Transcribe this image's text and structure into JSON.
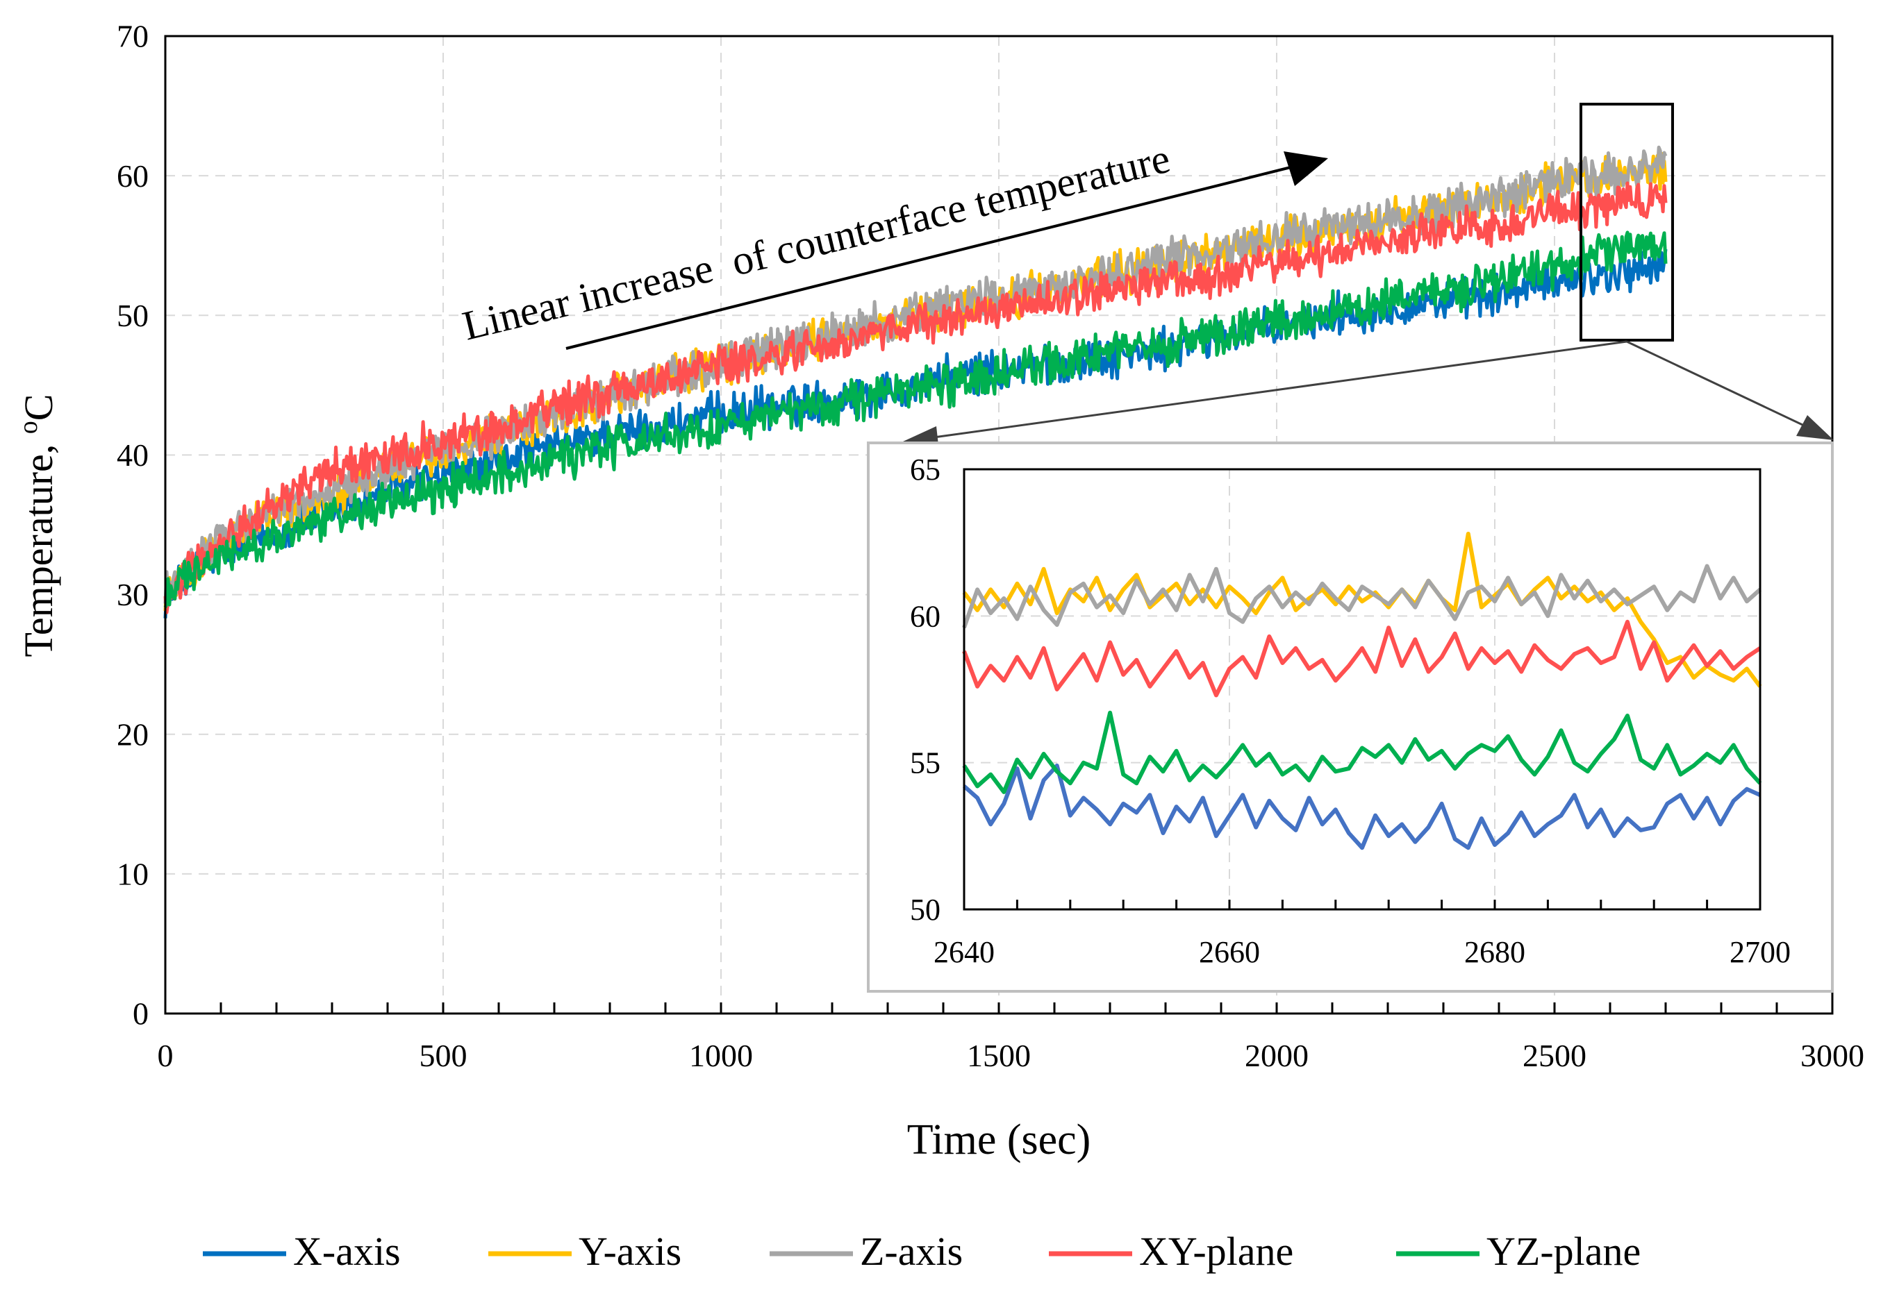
{
  "chart_data": [
    {
      "type": "line",
      "title": "",
      "xlabel": "Time (sec)",
      "ylabel": "Temperature, ",
      "ylabel_sup": "o",
      "ylabel_unit": "C",
      "xlim": [
        0,
        3000
      ],
      "ylim": [
        0,
        70
      ],
      "x_ticks": [
        "0",
        "500",
        "1000",
        "1500",
        "2000",
        "2500",
        "3000"
      ],
      "y_ticks": [
        "0",
        "10",
        "20",
        "30",
        "40",
        "50",
        "60",
        "70"
      ],
      "grid": true,
      "legend_position": "bottom",
      "annotation": "Linear increase  of counterface temperature",
      "series": [
        {
          "name": "X-axis",
          "color": "#0070C0",
          "x": [
            0,
            100,
            200,
            300,
            400,
            500,
            600,
            700,
            800,
            900,
            1000,
            1100,
            1200,
            1300,
            1400,
            1500,
            1600,
            1700,
            1800,
            1900,
            2000,
            2100,
            2200,
            2300,
            2400,
            2500,
            2600,
            2700
          ],
          "y": [
            30,
            33,
            34.5,
            36,
            37.5,
            38.5,
            39.5,
            40.5,
            41.5,
            42,
            43,
            43.5,
            44,
            44.5,
            45.5,
            46,
            46.5,
            47,
            47.5,
            48.5,
            49,
            50,
            50.5,
            51,
            51.5,
            52.5,
            53,
            53.5
          ]
        },
        {
          "name": "Y-axis",
          "color": "#FFC000",
          "x": [
            0,
            100,
            200,
            300,
            400,
            500,
            600,
            700,
            800,
            900,
            1000,
            1100,
            1200,
            1300,
            1400,
            1500,
            1600,
            1700,
            1800,
            1900,
            2000,
            2100,
            2200,
            2300,
            2400,
            2500,
            2600,
            2700
          ],
          "y": [
            30,
            34,
            36,
            37,
            39,
            40,
            41.5,
            42.5,
            44,
            45.5,
            46.5,
            47.5,
            48.5,
            49.5,
            50,
            51,
            52,
            53,
            53.5,
            54.5,
            55.5,
            56,
            57,
            57.5,
            58.5,
            59.5,
            60,
            60.5
          ]
        },
        {
          "name": "Z-axis",
          "color": "#A5A5A5",
          "x": [
            0,
            100,
            200,
            300,
            400,
            500,
            600,
            700,
            800,
            900,
            1000,
            1100,
            1200,
            1300,
            1400,
            1500,
            1600,
            1700,
            1800,
            1900,
            2000,
            2100,
            2200,
            2300,
            2400,
            2500,
            2600,
            2700
          ],
          "y": [
            30,
            34,
            36,
            37.5,
            39,
            40.5,
            41.5,
            43,
            44,
            45.5,
            46.5,
            47.5,
            48.5,
            49.5,
            50.5,
            51.5,
            52,
            53,
            54,
            54.5,
            55.5,
            56.5,
            57,
            57.5,
            58.5,
            59.5,
            60,
            61
          ]
        },
        {
          "name": "XY-plane",
          "color": "#FF5050",
          "x": [
            0,
            100,
            200,
            300,
            400,
            500,
            600,
            700,
            800,
            900,
            1000,
            1100,
            1200,
            1300,
            1400,
            1500,
            1600,
            1700,
            1800,
            1900,
            2000,
            2100,
            2200,
            2300,
            2400,
            2500,
            2600,
            2700
          ],
          "y": [
            30,
            34,
            36.5,
            39,
            40,
            41,
            42,
            43.5,
            44.5,
            45.5,
            46.5,
            47,
            48,
            49,
            49.5,
            50.5,
            51,
            52,
            52.5,
            53,
            54,
            54.5,
            55.5,
            56,
            56.5,
            57.5,
            58,
            58.5
          ]
        },
        {
          "name": "YZ-plane",
          "color": "#00B050",
          "x": [
            0,
            100,
            200,
            300,
            400,
            500,
            600,
            700,
            800,
            900,
            1000,
            1100,
            1200,
            1300,
            1400,
            1500,
            1600,
            1700,
            1800,
            1900,
            2000,
            2100,
            2200,
            2300,
            2400,
            2500,
            2600,
            2700
          ],
          "y": [
            30,
            32.5,
            34,
            35.5,
            36.5,
            37.5,
            38.5,
            39.5,
            40.5,
            41.5,
            42,
            43,
            43.5,
            44.5,
            45,
            46,
            46.5,
            47.5,
            48,
            48.5,
            49.5,
            50,
            51,
            51.5,
            52.5,
            53.5,
            54.5,
            55
          ]
        }
      ]
    },
    {
      "type": "line",
      "title": "",
      "xlabel": "",
      "ylabel": "",
      "xlim": [
        2640,
        2700
      ],
      "ylim": [
        50,
        65
      ],
      "x_ticks": [
        "2640",
        "2660",
        "2680",
        "2700"
      ],
      "y_ticks": [
        "50",
        "55",
        "60",
        "65"
      ],
      "grid": true,
      "series": [
        {
          "name": "X-axis",
          "color": "#4472C4",
          "x": [
            2640,
            2641,
            2642,
            2643,
            2644,
            2645,
            2646,
            2647,
            2648,
            2649,
            2650,
            2651,
            2652,
            2653,
            2654,
            2655,
            2656,
            2657,
            2658,
            2659,
            2660,
            2661,
            2662,
            2663,
            2664,
            2665,
            2666,
            2667,
            2668,
            2669,
            2670,
            2671,
            2672,
            2673,
            2674,
            2675,
            2676,
            2677,
            2678,
            2679,
            2680,
            2681,
            2682,
            2683,
            2684,
            2685,
            2686,
            2687,
            2688,
            2689,
            2690,
            2691,
            2692,
            2693,
            2694,
            2695,
            2696,
            2697,
            2698,
            2699,
            2700
          ],
          "y": [
            54.2,
            53.8,
            52.9,
            53.6,
            54.8,
            53.1,
            54.4,
            54.9,
            53.2,
            53.8,
            53.4,
            52.9,
            53.6,
            53.3,
            53.9,
            52.6,
            53.5,
            53.0,
            53.8,
            52.5,
            53.2,
            53.9,
            52.8,
            53.7,
            53.1,
            52.7,
            53.8,
            52.9,
            53.4,
            52.6,
            52.1,
            53.2,
            52.5,
            52.9,
            52.3,
            52.8,
            53.6,
            52.4,
            52.1,
            53.1,
            52.2,
            52.6,
            53.3,
            52.5,
            52.9,
            53.2,
            53.9,
            52.8,
            53.4,
            52.5,
            53.1,
            52.7,
            52.8,
            53.6,
            53.9,
            53.1,
            53.8,
            52.9,
            53.7,
            54.1,
            53.9
          ]
        },
        {
          "name": "Y-axis",
          "color": "#FFC000",
          "x": [
            2640,
            2641,
            2642,
            2643,
            2644,
            2645,
            2646,
            2647,
            2648,
            2649,
            2650,
            2651,
            2652,
            2653,
            2654,
            2655,
            2656,
            2657,
            2658,
            2659,
            2660,
            2661,
            2662,
            2663,
            2664,
            2665,
            2666,
            2667,
            2668,
            2669,
            2670,
            2671,
            2672,
            2673,
            2674,
            2675,
            2676,
            2677,
            2678,
            2679,
            2680,
            2681,
            2682,
            2683,
            2684,
            2685,
            2686,
            2687,
            2688,
            2689,
            2690,
            2691,
            2692,
            2693,
            2694,
            2695,
            2696,
            2697,
            2698,
            2699,
            2700
          ],
          "y": [
            60.8,
            60.2,
            60.9,
            60.3,
            61.1,
            60.4,
            61.6,
            60.1,
            60.9,
            60.5,
            61.3,
            60.2,
            60.9,
            61.4,
            60.3,
            60.7,
            61.1,
            60.4,
            60.9,
            60.3,
            61.0,
            60.6,
            60.1,
            60.8,
            61.3,
            60.2,
            60.6,
            60.9,
            60.4,
            61.0,
            60.5,
            60.8,
            60.3,
            60.9,
            60.4,
            61.2,
            60.6,
            60.2,
            62.8,
            60.3,
            60.7,
            61.1,
            60.4,
            60.9,
            61.3,
            60.6,
            61.0,
            60.5,
            60.8,
            60.2,
            60.6,
            59.8,
            59.2,
            58.4,
            58.6,
            57.9,
            58.3,
            58.0,
            57.8,
            58.2,
            57.6
          ]
        },
        {
          "name": "Z-axis",
          "color": "#A5A5A5",
          "x": [
            2640,
            2641,
            2642,
            2643,
            2644,
            2645,
            2646,
            2647,
            2648,
            2649,
            2650,
            2651,
            2652,
            2653,
            2654,
            2655,
            2656,
            2657,
            2658,
            2659,
            2660,
            2661,
            2662,
            2663,
            2664,
            2665,
            2666,
            2667,
            2668,
            2669,
            2670,
            2671,
            2672,
            2673,
            2674,
            2675,
            2676,
            2677,
            2678,
            2679,
            2680,
            2681,
            2682,
            2683,
            2684,
            2685,
            2686,
            2687,
            2688,
            2689,
            2690,
            2691,
            2692,
            2693,
            2694,
            2695,
            2696,
            2697,
            2698,
            2699,
            2700
          ],
          "y": [
            59.6,
            60.9,
            60.1,
            60.6,
            59.9,
            61.0,
            60.2,
            59.7,
            60.8,
            61.1,
            60.3,
            60.7,
            60.1,
            61.2,
            60.4,
            60.9,
            60.2,
            61.4,
            60.5,
            61.6,
            60.1,
            59.8,
            60.6,
            61.0,
            60.3,
            60.8,
            60.4,
            61.1,
            60.6,
            60.2,
            61.0,
            60.7,
            60.4,
            60.9,
            60.3,
            61.2,
            60.6,
            59.9,
            60.8,
            61.0,
            60.5,
            61.3,
            60.4,
            60.8,
            60.0,
            61.4,
            60.6,
            61.2,
            60.5,
            60.9,
            60.4,
            60.7,
            61.0,
            60.2,
            60.8,
            60.5,
            61.7,
            60.6,
            61.3,
            60.5,
            60.9
          ]
        },
        {
          "name": "XY-plane",
          "color": "#FF5050",
          "x": [
            2640,
            2641,
            2642,
            2643,
            2644,
            2645,
            2646,
            2647,
            2648,
            2649,
            2650,
            2651,
            2652,
            2653,
            2654,
            2655,
            2656,
            2657,
            2658,
            2659,
            2660,
            2661,
            2662,
            2663,
            2664,
            2665,
            2666,
            2667,
            2668,
            2669,
            2670,
            2671,
            2672,
            2673,
            2674,
            2675,
            2676,
            2677,
            2678,
            2679,
            2680,
            2681,
            2682,
            2683,
            2684,
            2685,
            2686,
            2687,
            2688,
            2689,
            2690,
            2691,
            2692,
            2693,
            2694,
            2695,
            2696,
            2697,
            2698,
            2699,
            2700
          ],
          "y": [
            58.8,
            57.6,
            58.3,
            57.8,
            58.6,
            57.9,
            58.9,
            57.5,
            58.1,
            58.7,
            57.8,
            59.1,
            58.0,
            58.5,
            57.6,
            58.2,
            58.8,
            57.9,
            58.4,
            57.3,
            58.2,
            58.6,
            57.9,
            59.3,
            58.4,
            58.9,
            58.2,
            58.5,
            57.8,
            58.3,
            58.9,
            58.1,
            59.6,
            58.3,
            59.2,
            58.1,
            58.6,
            59.4,
            58.2,
            58.9,
            58.4,
            58.8,
            58.1,
            59.0,
            58.5,
            58.2,
            58.7,
            58.9,
            58.4,
            58.6,
            59.8,
            58.2,
            59.1,
            57.8,
            58.4,
            59.0,
            58.3,
            58.8,
            58.2,
            58.6,
            58.9
          ]
        },
        {
          "name": "YZ-plane",
          "color": "#00B050",
          "x": [
            2640,
            2641,
            2642,
            2643,
            2644,
            2645,
            2646,
            2647,
            2648,
            2649,
            2650,
            2651,
            2652,
            2653,
            2654,
            2655,
            2656,
            2657,
            2658,
            2659,
            2660,
            2661,
            2662,
            2663,
            2664,
            2665,
            2666,
            2667,
            2668,
            2669,
            2670,
            2671,
            2672,
            2673,
            2674,
            2675,
            2676,
            2677,
            2678,
            2679,
            2680,
            2681,
            2682,
            2683,
            2684,
            2685,
            2686,
            2687,
            2688,
            2689,
            2690,
            2691,
            2692,
            2693,
            2694,
            2695,
            2696,
            2697,
            2698,
            2699,
            2700
          ],
          "y": [
            54.9,
            54.2,
            54.6,
            54.0,
            55.1,
            54.5,
            55.3,
            54.7,
            54.3,
            55.0,
            54.8,
            56.7,
            54.6,
            54.3,
            55.2,
            54.7,
            55.4,
            54.4,
            54.9,
            54.5,
            55.0,
            55.6,
            54.9,
            55.3,
            54.6,
            54.9,
            54.4,
            55.2,
            54.7,
            54.8,
            55.5,
            55.2,
            55.6,
            55.0,
            55.8,
            55.1,
            55.4,
            54.8,
            55.3,
            55.6,
            55.4,
            55.9,
            55.1,
            54.6,
            55.2,
            56.1,
            55.0,
            54.7,
            55.3,
            55.8,
            56.6,
            55.1,
            54.8,
            55.6,
            54.6,
            54.9,
            55.3,
            55.0,
            55.6,
            54.8,
            54.3
          ]
        }
      ]
    }
  ]
}
